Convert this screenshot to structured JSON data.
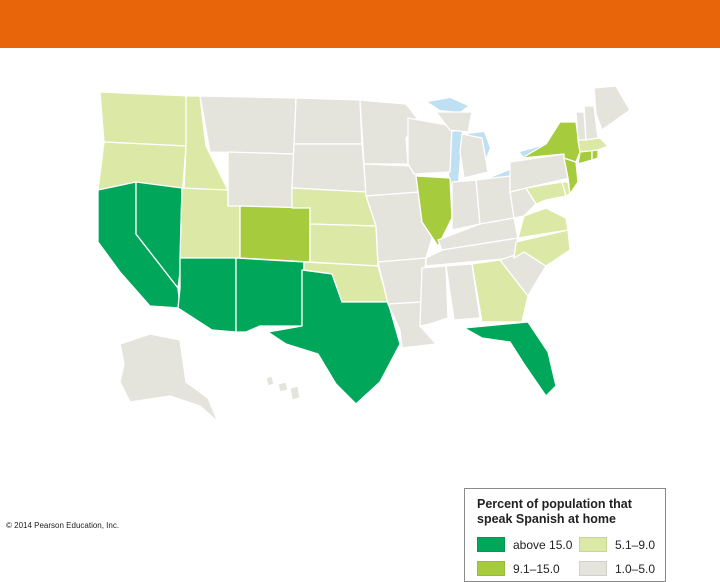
{
  "colors": {
    "top_bar": "#e8650a",
    "above_15": "#00a65a",
    "range_9_15": "#a6cb3d",
    "range_5_9": "#dbe8a6",
    "range_1_5": "#e4e4dd",
    "water": "#bfe0f2",
    "border": "#ffffff"
  },
  "legend": {
    "title": "Percent of population that speak Spanish at home",
    "items": [
      {
        "label": "above 15.0",
        "color": "#00a65a"
      },
      {
        "label": "5.1–9.0",
        "color": "#dbe8a6"
      },
      {
        "label": "9.1–15.0",
        "color": "#a6cb3d"
      },
      {
        "label": "1.0–5.0",
        "color": "#e4e4dd"
      }
    ]
  },
  "categories": {
    "above 15.0": [
      "California",
      "Nevada",
      "Arizona",
      "New Mexico",
      "Texas",
      "Florida"
    ],
    "9.1–15.0": [
      "Colorado",
      "Illinois",
      "New York",
      "New Jersey",
      "Connecticut",
      "Rhode Island"
    ],
    "5.1–9.0": [
      "Washington",
      "Oregon",
      "Idaho",
      "Utah",
      "Nebraska",
      "Kansas",
      "Oklahoma",
      "Georgia",
      "North Carolina",
      "Virginia",
      "Maryland",
      "Massachusetts",
      "Delaware"
    ],
    "1.0–5.0": [
      "Montana",
      "Wyoming",
      "North Dakota",
      "South Dakota",
      "Minnesota",
      "Iowa",
      "Missouri",
      "Arkansas",
      "Louisiana",
      "Wisconsin",
      "Michigan",
      "Indiana",
      "Ohio",
      "Kentucky",
      "Tennessee",
      "Mississippi",
      "Alabama",
      "South Carolina",
      "West Virginia",
      "Pennsylvania",
      "Vermont",
      "New Hampshire",
      "Maine",
      "Alaska",
      "Hawaii"
    ]
  },
  "copyright": "© 2014 Pearson Education, Inc."
}
